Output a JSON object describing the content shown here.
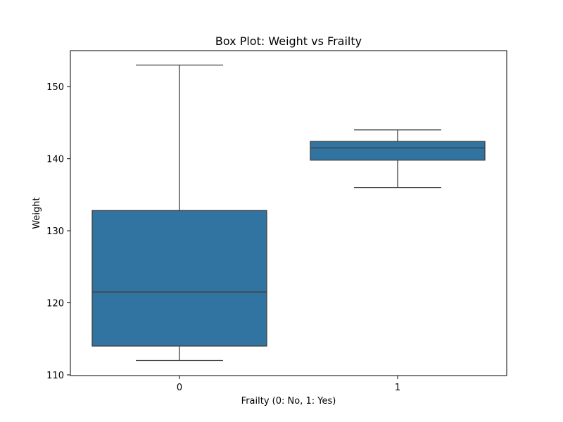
{
  "chart_data": {
    "type": "box",
    "title": "Box Plot: Weight vs Frailty",
    "xlabel": "Frailty (0: No, 1: Yes)",
    "ylabel": "Weight",
    "categories": [
      "0",
      "1"
    ],
    "ylim": [
      109.9,
      155.0
    ],
    "yticks": [
      110,
      120,
      130,
      140,
      150
    ],
    "grid": false,
    "legend": "none",
    "box_color": "#3274a1",
    "line_color": "#3f3f3f",
    "boxes": [
      {
        "category": "0",
        "whisker_low": 112.0,
        "q1": 114.0,
        "median": 121.5,
        "q3": 132.8,
        "whisker_high": 153.0
      },
      {
        "category": "1",
        "whisker_low": 136.0,
        "q1": 139.8,
        "median": 141.5,
        "q3": 142.4,
        "whisker_high": 144.0
      }
    ]
  }
}
